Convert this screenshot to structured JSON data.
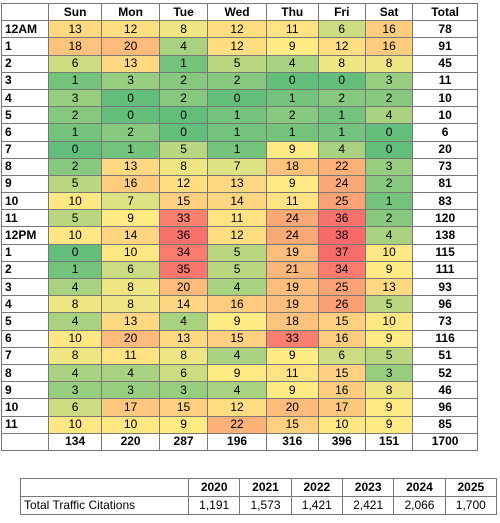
{
  "heatmap": {
    "header": [
      "Sun",
      "Mon",
      "Tue",
      "Wed",
      "Thu",
      "Fri",
      "Sat",
      "Total"
    ],
    "rows": [
      [
        "12AM",
        13,
        12,
        8,
        12,
        11,
        6,
        16,
        78
      ],
      [
        "1",
        18,
        20,
        4,
        12,
        9,
        12,
        16,
        91
      ],
      [
        "2",
        6,
        13,
        1,
        5,
        4,
        8,
        8,
        45
      ],
      [
        "3",
        1,
        3,
        2,
        2,
        0,
        0,
        3,
        11
      ],
      [
        "4",
        3,
        0,
        2,
        0,
        1,
        2,
        2,
        10
      ],
      [
        "5",
        2,
        0,
        0,
        1,
        2,
        1,
        4,
        10
      ],
      [
        "6",
        1,
        2,
        0,
        1,
        1,
        1,
        0,
        6
      ],
      [
        "7",
        0,
        1,
        5,
        1,
        9,
        4,
        0,
        20
      ],
      [
        "8",
        2,
        13,
        8,
        7,
        18,
        22,
        3,
        73
      ],
      [
        "9",
        5,
        16,
        12,
        13,
        9,
        24,
        2,
        81
      ],
      [
        "10",
        10,
        7,
        15,
        14,
        11,
        25,
        1,
        83
      ],
      [
        "11",
        5,
        9,
        33,
        11,
        24,
        36,
        2,
        120
      ],
      [
        "12PM",
        10,
        14,
        36,
        12,
        24,
        38,
        4,
        138
      ],
      [
        "1",
        0,
        10,
        34,
        5,
        19,
        37,
        10,
        115
      ],
      [
        "2",
        1,
        6,
        35,
        5,
        21,
        34,
        9,
        111
      ],
      [
        "3",
        4,
        8,
        20,
        4,
        19,
        25,
        13,
        93
      ],
      [
        "4",
        8,
        8,
        14,
        16,
        19,
        26,
        5,
        96
      ],
      [
        "5",
        4,
        13,
        4,
        9,
        18,
        15,
        10,
        73
      ],
      [
        "6",
        10,
        20,
        13,
        15,
        33,
        16,
        9,
        116
      ],
      [
        "7",
        8,
        11,
        8,
        4,
        9,
        6,
        5,
        51
      ],
      [
        "8",
        4,
        4,
        6,
        9,
        11,
        15,
        3,
        52
      ],
      [
        "9",
        3,
        3,
        3,
        4,
        9,
        16,
        8,
        46
      ],
      [
        "10",
        6,
        17,
        15,
        12,
        20,
        17,
        9,
        96
      ],
      [
        "11",
        10,
        10,
        9,
        22,
        15,
        10,
        9,
        85
      ]
    ],
    "totals": [
      134,
      220,
      287,
      196,
      316,
      396,
      151,
      1700
    ],
    "heat_colors": [
      "#63be7b",
      "#ffeb84",
      "#f8696b"
    ]
  },
  "yearly": {
    "header": [
      2020,
      2021,
      2022,
      2023,
      2024,
      2025
    ],
    "label": "Total Traffic Citations",
    "values": [
      "1,191",
      "1,573",
      "1,421",
      "2,421",
      "2,066",
      "1,700"
    ]
  }
}
